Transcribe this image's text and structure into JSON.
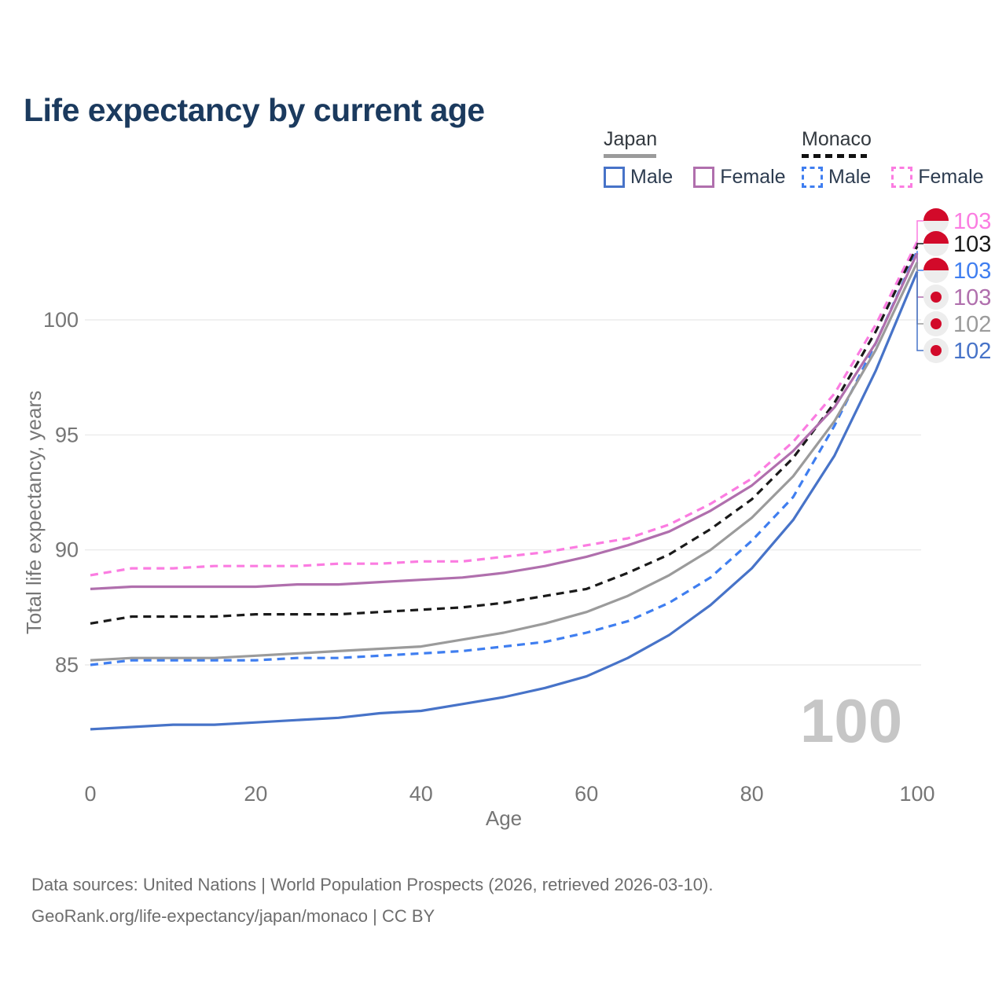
{
  "title": "Life expectancy by current age",
  "legend": {
    "groups": [
      {
        "label": "Japan",
        "line_style": "solid",
        "items": [
          {
            "label": "Male",
            "color": "#4773c8"
          },
          {
            "label": "Female",
            "color": "#b06fad"
          }
        ]
      },
      {
        "label": "Monaco",
        "line_style": "dashed",
        "items": [
          {
            "label": "Male",
            "color": "#3f7ef0"
          },
          {
            "label": "Female",
            "color": "#fb7ce1"
          }
        ]
      }
    ]
  },
  "watermark_age": "100",
  "footer": {
    "line1": "Data sources: United Nations | World Population Prospects (2026, retrieved 2026-03-10).",
    "line2": "GeoRank.org/life-expectancy/japan/monaco | CC BY"
  },
  "chart_data": {
    "type": "line",
    "title": "Life expectancy by current age",
    "xlabel": "Age",
    "ylabel": "Total life expectancy, years",
    "x_ticks": [
      0,
      20,
      40,
      60,
      80,
      100
    ],
    "y_ticks": [
      85,
      90,
      95,
      100
    ],
    "xlim": [
      0,
      100
    ],
    "ylim": [
      82,
      103.5
    ],
    "grid": "horizontal-only",
    "legend_position": "top-right",
    "ages": [
      0,
      5,
      10,
      15,
      20,
      25,
      30,
      35,
      40,
      45,
      50,
      55,
      60,
      65,
      70,
      75,
      80,
      85,
      90,
      95,
      100
    ],
    "series": [
      {
        "name": "Monaco Female",
        "country": "Monaco",
        "sex": "Female",
        "color": "#fb7ce1",
        "dashed": true,
        "flag": "monaco",
        "end_label": "103",
        "values": [
          88.9,
          89.2,
          89.2,
          89.3,
          89.3,
          89.3,
          89.4,
          89.4,
          89.5,
          89.5,
          89.7,
          89.9,
          90.2,
          90.5,
          91.1,
          92.0,
          93.1,
          94.7,
          96.8,
          99.8,
          103.4
        ]
      },
      {
        "name": "Monaco",
        "country": "Monaco",
        "sex": "Both",
        "color": "#1a1a1a",
        "dashed": true,
        "flag": "monaco",
        "end_label": "103",
        "values": [
          86.8,
          87.1,
          87.1,
          87.1,
          87.2,
          87.2,
          87.2,
          87.3,
          87.4,
          87.5,
          87.7,
          88.0,
          88.3,
          89.0,
          89.8,
          90.9,
          92.2,
          94.0,
          96.4,
          99.5,
          103.2
        ]
      },
      {
        "name": "Monaco Male",
        "country": "Monaco",
        "sex": "Male",
        "color": "#3f7ef0",
        "dashed": true,
        "flag": "monaco",
        "end_label": "103",
        "values": [
          85.0,
          85.2,
          85.2,
          85.2,
          85.2,
          85.3,
          85.3,
          85.4,
          85.5,
          85.6,
          85.8,
          86.0,
          86.4,
          86.9,
          87.7,
          88.8,
          90.4,
          92.3,
          95.4,
          99.0,
          103.0
        ]
      },
      {
        "name": "Japan Female",
        "country": "Japan",
        "sex": "Female",
        "color": "#b06fad",
        "dashed": false,
        "flag": "japan",
        "end_label": "103",
        "values": [
          88.3,
          88.4,
          88.4,
          88.4,
          88.4,
          88.5,
          88.5,
          88.6,
          88.7,
          88.8,
          89.0,
          89.3,
          89.7,
          90.2,
          90.8,
          91.7,
          92.8,
          94.3,
          96.2,
          99.0,
          102.9
        ]
      },
      {
        "name": "Japan",
        "country": "Japan",
        "sex": "Both",
        "color": "#9b9b9b",
        "dashed": false,
        "flag": "japan",
        "end_label": "102",
        "values": [
          85.2,
          85.3,
          85.3,
          85.3,
          85.4,
          85.5,
          85.6,
          85.7,
          85.8,
          86.1,
          86.4,
          86.8,
          87.3,
          88.0,
          88.9,
          90.0,
          91.4,
          93.2,
          95.6,
          98.7,
          102.5
        ]
      },
      {
        "name": "Japan Male",
        "country": "Japan",
        "sex": "Male",
        "color": "#4773c8",
        "dashed": false,
        "flag": "japan",
        "end_label": "102",
        "values": [
          82.2,
          82.3,
          82.4,
          82.4,
          82.5,
          82.6,
          82.7,
          82.9,
          83.0,
          83.3,
          83.6,
          84.0,
          84.5,
          85.3,
          86.3,
          87.6,
          89.2,
          91.3,
          94.1,
          97.8,
          102.1
        ]
      }
    ]
  }
}
